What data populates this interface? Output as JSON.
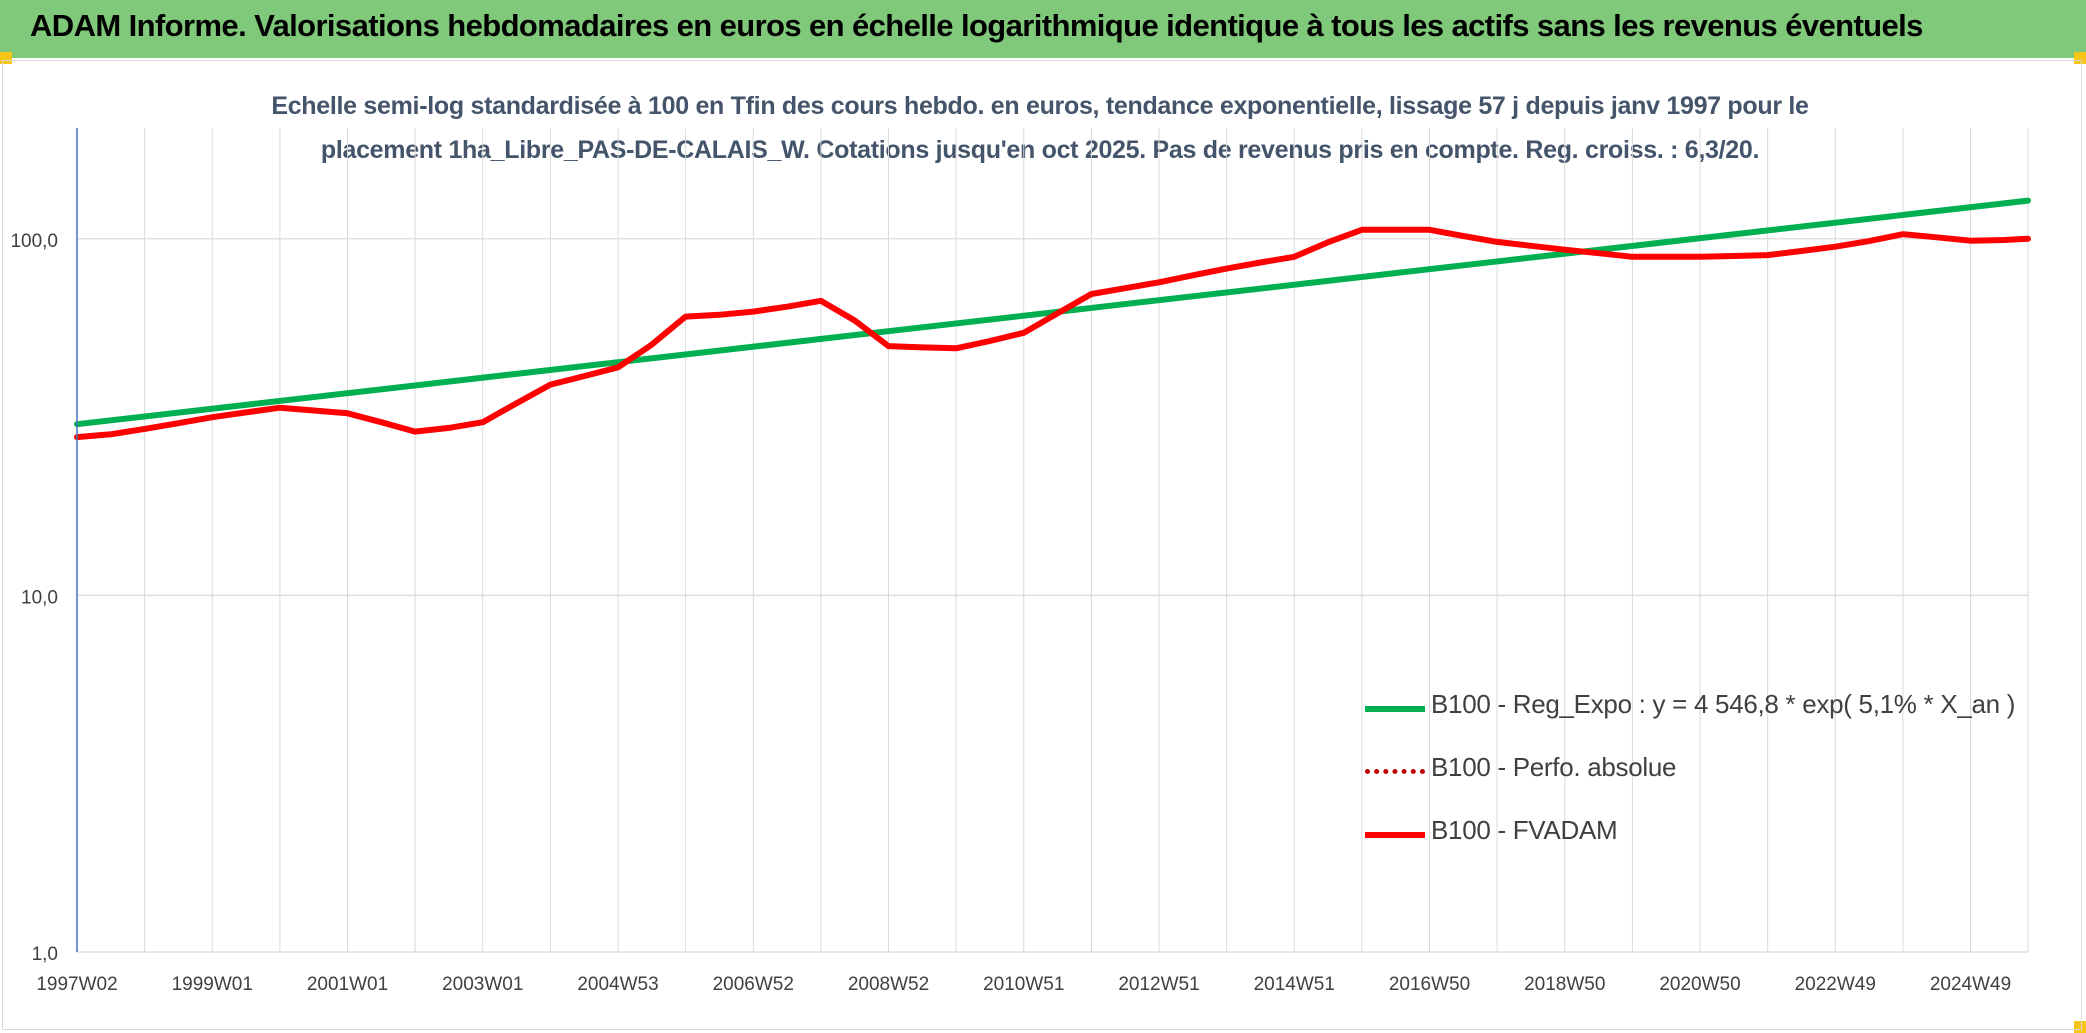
{
  "header": {
    "title": "ADAM Informe. Valorisations hebdomadaires en euros en échelle logarithmique identique à tous les actifs sans les revenus éventuels"
  },
  "colors": {
    "header_bg": "#80c97a",
    "trend": "#00b050",
    "fvadam": "#ff0000",
    "perf": "#c00000",
    "grid": "#d9d9d9",
    "axis": "#4472c4",
    "title_text": "#44546a"
  },
  "chart_data": {
    "type": "line",
    "title_line1": "Echelle semi-log standardisée à 100 en Tfin des cours hebdo. en euros, tendance exponentielle, lissage 57 j depuis janv 1997 pour le",
    "title_line2": "placement 1ha_Libre_PAS-DE-CALAIS_W. Cotations jusqu'en oct 2025. Pas de revenus pris en compte. Reg. croiss. : 6,3/20.",
    "y_scale": "log",
    "ylim": [
      1,
      170
    ],
    "y_ticks": [
      "1,0",
      "10,0",
      "100,0"
    ],
    "x_range": [
      1997.0,
      2025.85
    ],
    "x_tick_labels": [
      "1997W02",
      "1999W01",
      "2001W01",
      "2003W01",
      "2004W53",
      "2006W52",
      "2008W52",
      "2010W51",
      "2012W51",
      "2014W51",
      "2016W50",
      "2018W50",
      "2020W50",
      "2022W49",
      "2024W49"
    ],
    "x_tick_positions": [
      1997.0,
      1999.0,
      2001.0,
      2003.0,
      2005.0,
      2007.0,
      2009.0,
      2011.0,
      2013.0,
      2015.0,
      2017.0,
      2019.0,
      2021.0,
      2023.0,
      2025.0
    ],
    "grid": true,
    "legend_position": "bottom-right",
    "series": [
      {
        "name": "B100 - Reg_Expo : y = 4 546,8 * exp( 5,1% *  X_an )",
        "style": "solid",
        "color": "#00b050",
        "x": [
          1997.0,
          2025.85
        ],
        "y": [
          30.2,
          128.0
        ]
      },
      {
        "name": "B100 - Perfo. absolue",
        "style": "dotted",
        "color": "#c00000",
        "x": [],
        "y": []
      },
      {
        "name": "B100 - FVADAM",
        "style": "solid",
        "color": "#ff0000",
        "x": [
          1997.0,
          1997.5,
          1998.0,
          1998.5,
          1999.0,
          1999.5,
          2000.0,
          2000.5,
          2001.0,
          2001.5,
          2002.0,
          2002.5,
          2003.0,
          2003.5,
          2004.0,
          2004.5,
          2005.0,
          2005.5,
          2006.0,
          2006.5,
          2007.0,
          2007.5,
          2008.0,
          2008.5,
          2009.0,
          2009.5,
          2010.0,
          2010.5,
          2011.0,
          2011.5,
          2012.0,
          2012.5,
          2013.0,
          2013.5,
          2014.0,
          2014.5,
          2015.0,
          2015.5,
          2016.0,
          2016.5,
          2017.0,
          2017.5,
          2018.0,
          2018.5,
          2019.0,
          2019.5,
          2020.0,
          2020.5,
          2021.0,
          2021.5,
          2022.0,
          2022.5,
          2023.0,
          2023.5,
          2024.0,
          2024.5,
          2025.0,
          2025.5,
          2025.85
        ],
        "y": [
          27.8,
          28.3,
          29.3,
          30.4,
          31.6,
          32.6,
          33.6,
          33.0,
          32.4,
          30.6,
          28.8,
          29.5,
          30.6,
          34.6,
          39.0,
          41.2,
          43.6,
          50.5,
          60.5,
          61.2,
          62.5,
          64.5,
          67.0,
          59.0,
          50.0,
          49.6,
          49.3,
          51.7,
          54.5,
          61.8,
          70.0,
          72.7,
          75.5,
          79.0,
          82.5,
          85.8,
          89.0,
          97.8,
          106.0,
          106.0,
          106.0,
          101.8,
          98.0,
          95.6,
          93.2,
          91.1,
          89.0,
          89.0,
          89.0,
          89.5,
          90.0,
          92.4,
          95.0,
          98.5,
          103.0,
          101.0,
          98.8,
          99.2,
          100.0
        ]
      }
    ]
  }
}
